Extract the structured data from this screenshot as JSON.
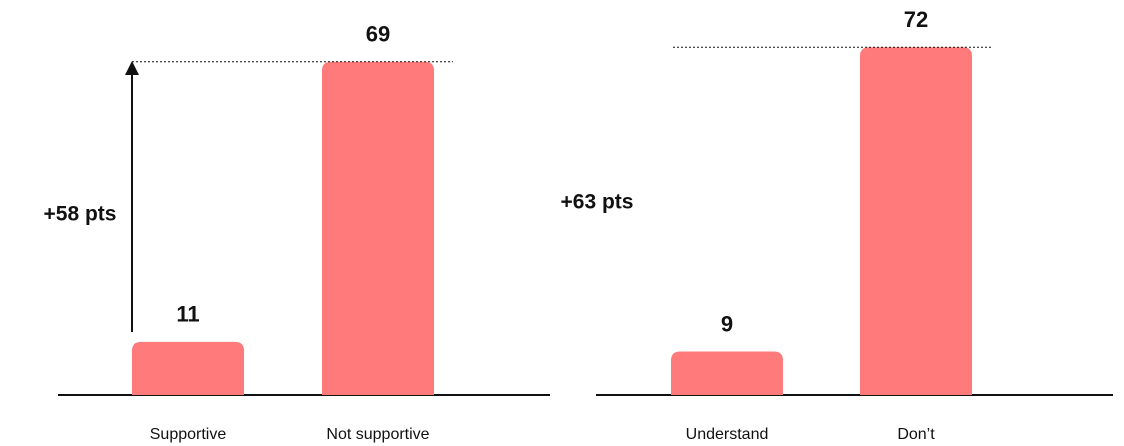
{
  "chart_data": [
    {
      "type": "bar",
      "categories": [
        "Supportive",
        "Not supportive"
      ],
      "values": [
        11,
        69
      ],
      "color": "#ff7a7a",
      "annotation": "+58 pts"
    },
    {
      "type": "bar",
      "categories": [
        "Understand",
        "Don’t"
      ],
      "values": [
        9,
        72
      ],
      "color": "#ff7a7a",
      "annotation": "+63 pts"
    }
  ]
}
